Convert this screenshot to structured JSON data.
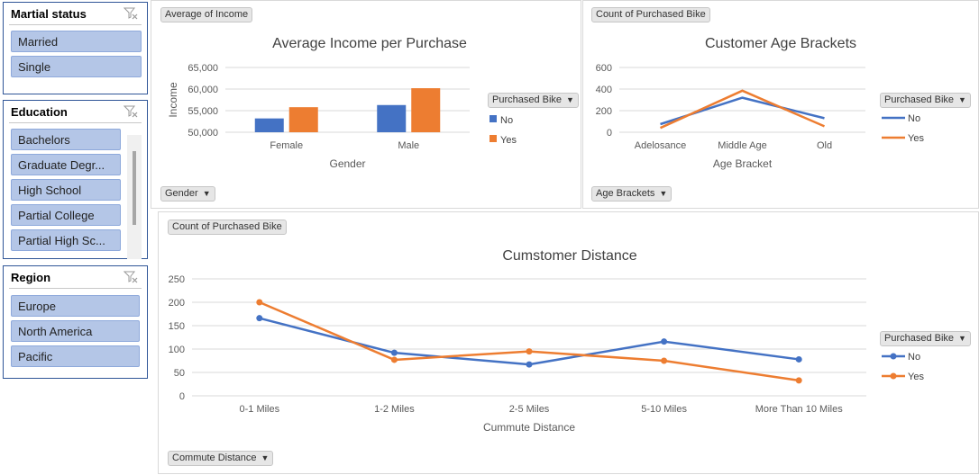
{
  "slicers": {
    "marital": {
      "title": "Martial status",
      "items": [
        "Married",
        "Single"
      ]
    },
    "education": {
      "title": "Education",
      "items": [
        "Bachelors",
        "Graduate Degr...",
        "High School",
        "Partial College",
        "Partial High Sc..."
      ]
    },
    "region": {
      "title": "Region",
      "items": [
        "Europe",
        "North America",
        "Pacific"
      ]
    }
  },
  "legend_filter_label": "Purchased Bike",
  "colors": {
    "no": "#4472c4",
    "yes": "#ed7d31",
    "slicer_item": "#b4c6e7",
    "slicer_border": "#2f5597"
  },
  "icons": {
    "slicer_filter": "clear-filter-icon",
    "dropdown": "dropdown-arrow-icon"
  },
  "chart_data": [
    {
      "type": "bar",
      "value_field": "Average of Income",
      "axis_field": "Gender",
      "title": "Average Income per Purchase",
      "xlabel": "Gender",
      "ylabel": "Income",
      "categories": [
        "Female",
        "Male"
      ],
      "series": [
        {
          "name": "No",
          "values": [
            53200,
            56300
          ]
        },
        {
          "name": "Yes",
          "values": [
            55800,
            60200
          ]
        }
      ],
      "ylim": [
        50000,
        65000
      ],
      "yticks": [
        "65,000",
        "60,000",
        "55,000",
        "50,000"
      ],
      "ytick_values": [
        65000,
        60000,
        55000,
        50000
      ],
      "grid": true,
      "legend": "right"
    },
    {
      "type": "line",
      "value_field": "Count of Purchased Bike",
      "axis_field": "Age Brackets",
      "title": "Customer Age Brackets",
      "xlabel": "Age Bracket",
      "ylabel": "",
      "categories": [
        "Adelosance",
        "Middle Age",
        "Old"
      ],
      "series": [
        {
          "name": "No",
          "values": [
            75,
            320,
            130
          ]
        },
        {
          "name": "Yes",
          "values": [
            40,
            385,
            55
          ]
        }
      ],
      "ylim": [
        0,
        600
      ],
      "yticks": [
        "600",
        "400",
        "200",
        "0"
      ],
      "ytick_values": [
        600,
        400,
        200,
        0
      ],
      "grid": true,
      "legend": "right"
    },
    {
      "type": "line",
      "value_field": "Count of Purchased Bike",
      "axis_field": "Commute Distance",
      "title": "Cumstomer Distance",
      "xlabel": "Cummute Distance",
      "ylabel": "",
      "categories": [
        "0-1 Miles",
        "1-2 Miles",
        "2-5 Miles",
        "5-10 Miles",
        "More Than 10 Miles"
      ],
      "series": [
        {
          "name": "No",
          "values": [
            166,
            92,
            67,
            116,
            78
          ]
        },
        {
          "name": "Yes",
          "values": [
            200,
            77,
            95,
            75,
            33
          ]
        }
      ],
      "ylim": [
        0,
        250
      ],
      "yticks": [
        "250",
        "200",
        "150",
        "100",
        "50",
        "0"
      ],
      "ytick_values": [
        250,
        200,
        150,
        100,
        50,
        0
      ],
      "grid": true,
      "markers": true,
      "legend": "right"
    }
  ]
}
